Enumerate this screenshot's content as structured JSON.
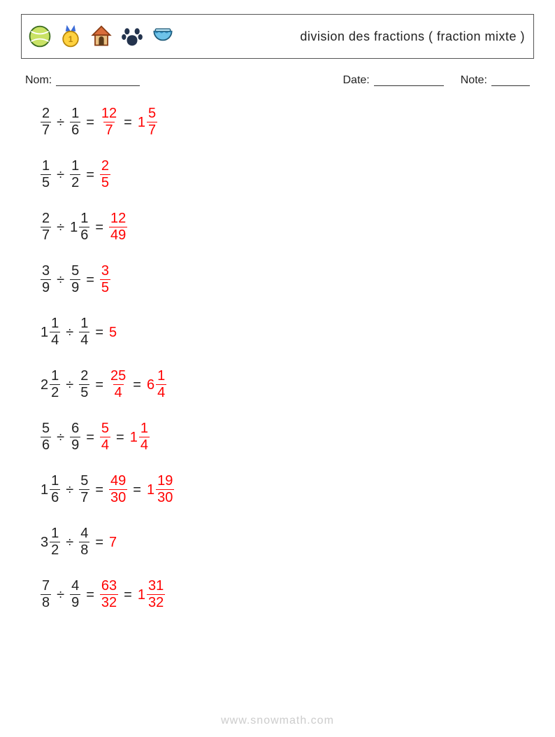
{
  "colors": {
    "text": "#222222",
    "answer": "#ff0000",
    "border": "#555555",
    "watermark": "#cccccc",
    "background": "#ffffff"
  },
  "typography": {
    "title_fontsize": 18,
    "meta_fontsize": 16,
    "equation_fontsize": 20,
    "font_family": "Segoe UI / Helvetica Neue / Arial"
  },
  "header": {
    "title": "division des fractions ( fraction mixte )",
    "icons": [
      "tennis-ball",
      "medal",
      "dog-house",
      "paw",
      "fish-bowl"
    ]
  },
  "meta": {
    "name_label": "Nom:",
    "date_label": "Date:",
    "note_label": "Note:"
  },
  "problems": [
    {
      "left": {
        "whole": null,
        "num": "2",
        "den": "7"
      },
      "op": "÷",
      "right": {
        "whole": null,
        "num": "1",
        "den": "6"
      },
      "answers": [
        {
          "whole": null,
          "num": "12",
          "den": "7"
        },
        {
          "whole": "1",
          "num": "5",
          "den": "7"
        }
      ]
    },
    {
      "left": {
        "whole": null,
        "num": "1",
        "den": "5"
      },
      "op": "÷",
      "right": {
        "whole": null,
        "num": "1",
        "den": "2"
      },
      "answers": [
        {
          "whole": null,
          "num": "2",
          "den": "5"
        }
      ]
    },
    {
      "left": {
        "whole": null,
        "num": "2",
        "den": "7"
      },
      "op": "÷",
      "right": {
        "whole": "1",
        "num": "1",
        "den": "6"
      },
      "answers": [
        {
          "whole": null,
          "num": "12",
          "den": "49"
        }
      ]
    },
    {
      "left": {
        "whole": null,
        "num": "3",
        "den": "9"
      },
      "op": "÷",
      "right": {
        "whole": null,
        "num": "5",
        "den": "9"
      },
      "answers": [
        {
          "whole": null,
          "num": "3",
          "den": "5"
        }
      ]
    },
    {
      "left": {
        "whole": "1",
        "num": "1",
        "den": "4"
      },
      "op": "÷",
      "right": {
        "whole": null,
        "num": "1",
        "den": "4"
      },
      "answers": [
        {
          "whole": "5",
          "num": null,
          "den": null
        }
      ]
    },
    {
      "left": {
        "whole": "2",
        "num": "1",
        "den": "2"
      },
      "op": "÷",
      "right": {
        "whole": null,
        "num": "2",
        "den": "5"
      },
      "answers": [
        {
          "whole": null,
          "num": "25",
          "den": "4"
        },
        {
          "whole": "6",
          "num": "1",
          "den": "4"
        }
      ]
    },
    {
      "left": {
        "whole": null,
        "num": "5",
        "den": "6"
      },
      "op": "÷",
      "right": {
        "whole": null,
        "num": "6",
        "den": "9"
      },
      "answers": [
        {
          "whole": null,
          "num": "5",
          "den": "4"
        },
        {
          "whole": "1",
          "num": "1",
          "den": "4"
        }
      ]
    },
    {
      "left": {
        "whole": "1",
        "num": "1",
        "den": "6"
      },
      "op": "÷",
      "right": {
        "whole": null,
        "num": "5",
        "den": "7"
      },
      "answers": [
        {
          "whole": null,
          "num": "49",
          "den": "30"
        },
        {
          "whole": "1",
          "num": "19",
          "den": "30"
        }
      ]
    },
    {
      "left": {
        "whole": "3",
        "num": "1",
        "den": "2"
      },
      "op": "÷",
      "right": {
        "whole": null,
        "num": "4",
        "den": "8"
      },
      "answers": [
        {
          "whole": "7",
          "num": null,
          "den": null
        }
      ]
    },
    {
      "left": {
        "whole": null,
        "num": "7",
        "den": "8"
      },
      "op": "÷",
      "right": {
        "whole": null,
        "num": "4",
        "den": "9"
      },
      "answers": [
        {
          "whole": null,
          "num": "63",
          "den": "32"
        },
        {
          "whole": "1",
          "num": "31",
          "den": "32"
        }
      ]
    }
  ],
  "equals_sign": "=",
  "watermark": "www.snowmath.com"
}
